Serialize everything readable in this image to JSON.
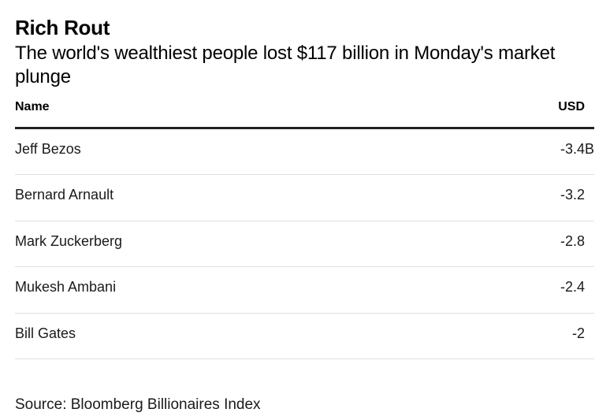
{
  "chart_data": {
    "type": "table",
    "title": "Rich Rout",
    "subtitle": "The world's wealthiest people lost $117 billion in Monday's market plunge",
    "columns": [
      "Name",
      "USD"
    ],
    "rows": [
      {
        "name": "Jeff Bezos",
        "value": -3.4,
        "display": "-3.4B"
      },
      {
        "name": "Bernard Arnault",
        "value": -3.2,
        "display": "-3.2"
      },
      {
        "name": "Mark Zuckerberg",
        "value": -2.8,
        "display": "-2.8"
      },
      {
        "name": "Mukesh Ambani",
        "value": -2.4,
        "display": "-2.4"
      },
      {
        "name": "Bill Gates",
        "value": -2,
        "display": "-2"
      }
    ],
    "source": "Source: Bloomberg Billionaires Index"
  },
  "colors": {
    "text": "#000000",
    "header_rule": "#222222",
    "row_rule": "#e0e0e0"
  }
}
